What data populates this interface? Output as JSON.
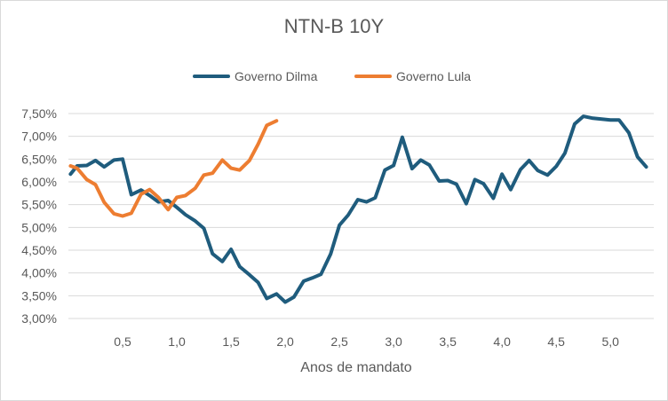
{
  "chart_data": {
    "type": "line",
    "title": "NTN-B 10Y",
    "xlabel": "Anos de mandato",
    "ylabel": "",
    "xlim": [
      0,
      5.4
    ],
    "ylim": [
      3.0,
      7.5
    ],
    "x_ticks": [
      {
        "value": 0.5,
        "label": "0,5"
      },
      {
        "value": 1.0,
        "label": "1,0"
      },
      {
        "value": 1.5,
        "label": "1,5"
      },
      {
        "value": 2.0,
        "label": "2,0"
      },
      {
        "value": 2.5,
        "label": "2,5"
      },
      {
        "value": 3.0,
        "label": "3,0"
      },
      {
        "value": 3.5,
        "label": "3,5"
      },
      {
        "value": 4.0,
        "label": "4,0"
      },
      {
        "value": 4.5,
        "label": "4,5"
      },
      {
        "value": 5.0,
        "label": "5,0"
      }
    ],
    "y_ticks": [
      {
        "value": 3.0,
        "label": "3,00%"
      },
      {
        "value": 3.5,
        "label": "3,50%"
      },
      {
        "value": 4.0,
        "label": "4,00%"
      },
      {
        "value": 4.5,
        "label": "4,50%"
      },
      {
        "value": 5.0,
        "label": "5,00%"
      },
      {
        "value": 5.5,
        "label": "5,50%"
      },
      {
        "value": 6.0,
        "label": "6,00%"
      },
      {
        "value": 6.5,
        "label": "6,50%"
      },
      {
        "value": 7.0,
        "label": "7,00%"
      },
      {
        "value": 7.5,
        "label": "7,50%"
      }
    ],
    "grid": true,
    "legend_position": "top",
    "series": [
      {
        "name": "Governo Dilma",
        "color": "#1f5c7d",
        "points": [
          [
            0.02,
            6.17
          ],
          [
            0.08,
            6.35
          ],
          [
            0.17,
            6.36
          ],
          [
            0.25,
            6.47
          ],
          [
            0.33,
            6.33
          ],
          [
            0.42,
            6.48
          ],
          [
            0.5,
            6.5
          ],
          [
            0.58,
            5.72
          ],
          [
            0.67,
            5.82
          ],
          [
            0.75,
            5.7
          ],
          [
            0.83,
            5.56
          ],
          [
            0.92,
            5.59
          ],
          [
            1.0,
            5.44
          ],
          [
            1.08,
            5.28
          ],
          [
            1.17,
            5.14
          ],
          [
            1.25,
            4.98
          ],
          [
            1.33,
            4.42
          ],
          [
            1.42,
            4.25
          ],
          [
            1.5,
            4.52
          ],
          [
            1.58,
            4.14
          ],
          [
            1.67,
            3.96
          ],
          [
            1.75,
            3.79
          ],
          [
            1.83,
            3.44
          ],
          [
            1.92,
            3.54
          ],
          [
            2.0,
            3.36
          ],
          [
            2.08,
            3.47
          ],
          [
            2.17,
            3.82
          ],
          [
            2.25,
            3.89
          ],
          [
            2.33,
            3.97
          ],
          [
            2.42,
            4.42
          ],
          [
            2.5,
            5.05
          ],
          [
            2.58,
            5.27
          ],
          [
            2.67,
            5.61
          ],
          [
            2.75,
            5.56
          ],
          [
            2.83,
            5.65
          ],
          [
            2.92,
            6.26
          ],
          [
            3.0,
            6.36
          ],
          [
            3.08,
            6.98
          ],
          [
            3.17,
            6.29
          ],
          [
            3.25,
            6.48
          ],
          [
            3.33,
            6.37
          ],
          [
            3.42,
            6.02
          ],
          [
            3.5,
            6.03
          ],
          [
            3.58,
            5.95
          ],
          [
            3.67,
            5.52
          ],
          [
            3.75,
            6.05
          ],
          [
            3.83,
            5.96
          ],
          [
            3.92,
            5.64
          ],
          [
            4.0,
            6.17
          ],
          [
            4.08,
            5.83
          ],
          [
            4.17,
            6.27
          ],
          [
            4.25,
            6.47
          ],
          [
            4.33,
            6.25
          ],
          [
            4.42,
            6.15
          ],
          [
            4.5,
            6.34
          ],
          [
            4.58,
            6.63
          ],
          [
            4.67,
            7.27
          ],
          [
            4.75,
            7.44
          ],
          [
            4.83,
            7.4
          ],
          [
            4.92,
            7.38
          ],
          [
            5.0,
            7.36
          ],
          [
            5.08,
            7.36
          ],
          [
            5.17,
            7.08
          ],
          [
            5.25,
            6.55
          ],
          [
            5.33,
            6.33
          ]
        ]
      },
      {
        "name": "Governo Lula",
        "color": "#ed7d31",
        "points": [
          [
            0.02,
            6.35
          ],
          [
            0.08,
            6.3
          ],
          [
            0.17,
            6.05
          ],
          [
            0.25,
            5.94
          ],
          [
            0.33,
            5.55
          ],
          [
            0.42,
            5.3
          ],
          [
            0.5,
            5.25
          ],
          [
            0.58,
            5.31
          ],
          [
            0.67,
            5.73
          ],
          [
            0.75,
            5.83
          ],
          [
            0.83,
            5.66
          ],
          [
            0.92,
            5.39
          ],
          [
            1.0,
            5.66
          ],
          [
            1.08,
            5.7
          ],
          [
            1.17,
            5.86
          ],
          [
            1.25,
            6.15
          ],
          [
            1.33,
            6.19
          ],
          [
            1.42,
            6.48
          ],
          [
            1.5,
            6.3
          ],
          [
            1.58,
            6.26
          ],
          [
            1.67,
            6.47
          ],
          [
            1.75,
            6.83
          ],
          [
            1.83,
            7.24
          ],
          [
            1.92,
            7.34
          ]
        ]
      }
    ]
  }
}
